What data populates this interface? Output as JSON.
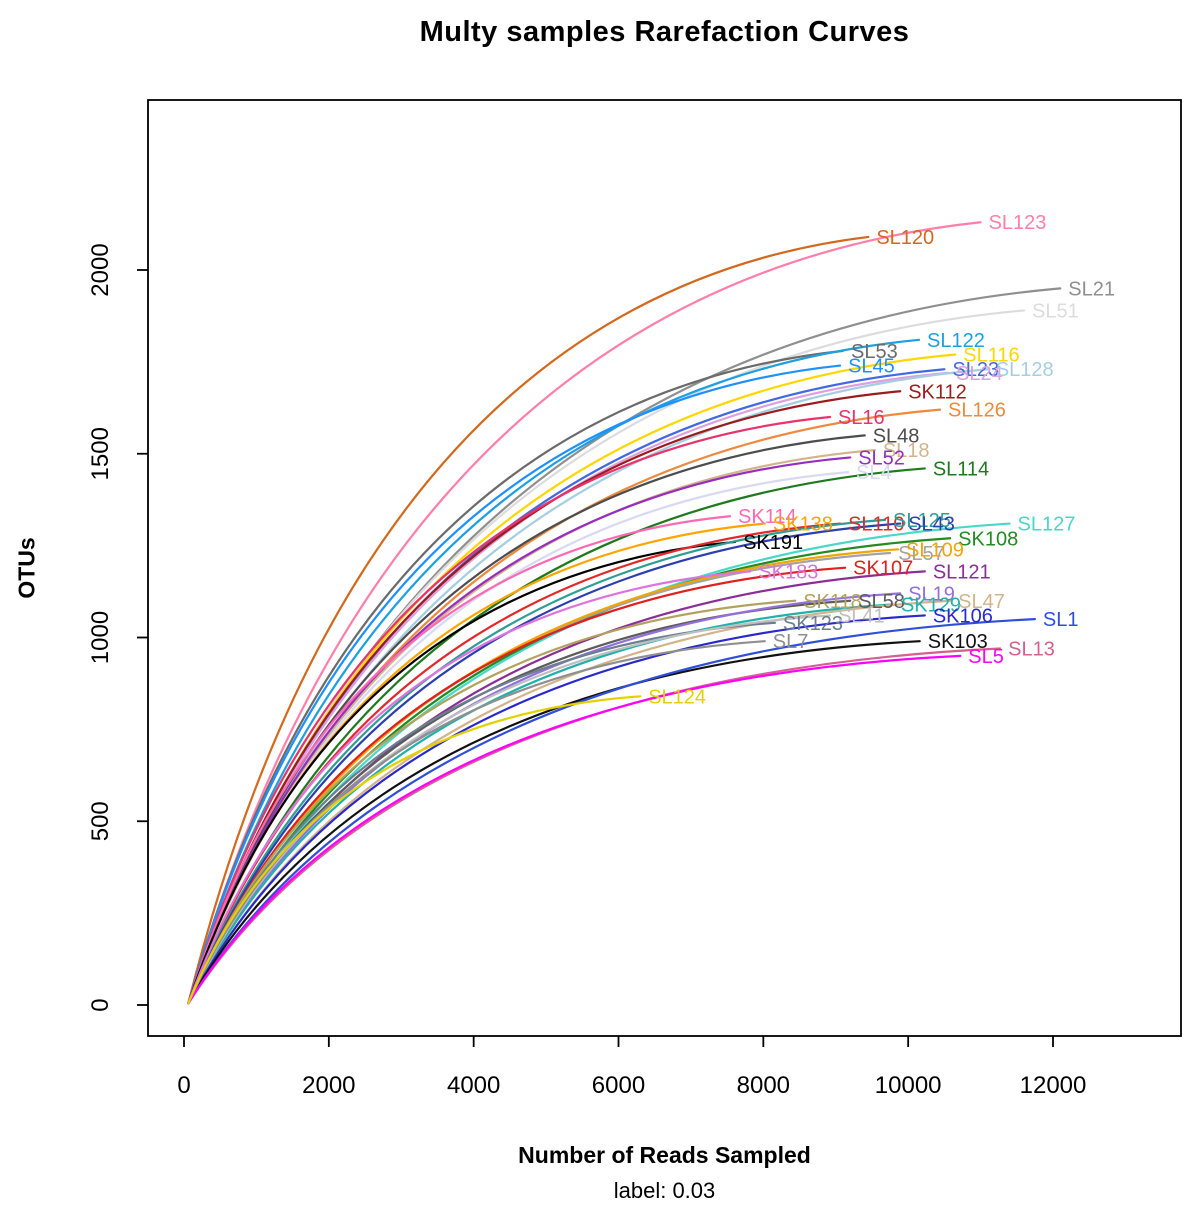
{
  "chart_data": {
    "type": "line",
    "title": "Multy samples Rarefaction Curves",
    "xlabel": "Number of Reads Sampled",
    "sublabel": "label: 0.03",
    "ylabel": "OTUs",
    "xlim": [
      0,
      13400
    ],
    "ylim": [
      0,
      2400
    ],
    "x_ticks": [
      0,
      2000,
      4000,
      6000,
      8000,
      10000,
      12000
    ],
    "y_ticks": [
      0,
      500,
      1000,
      1500,
      2000
    ],
    "grid": false,
    "legend": "labels at curve ends",
    "curve_start": {
      "reads": 60,
      "otus": 5
    },
    "series": [
      {
        "name": "SL123",
        "color": "#ff7fa8",
        "reads": 11000,
        "otus": 2130
      },
      {
        "name": "SL120",
        "color": "#d2691e",
        "reads": 9450,
        "otus": 2090
      },
      {
        "name": "SL21",
        "color": "#8f8f8f",
        "reads": 12100,
        "otus": 1950
      },
      {
        "name": "SL51",
        "color": "#dcdcdc",
        "reads": 11600,
        "otus": 1890
      },
      {
        "name": "SL53",
        "color": "#6b6b6b",
        "reads": 9100,
        "otus": 1780
      },
      {
        "name": "SL122",
        "color": "#1e9fe0",
        "reads": 10150,
        "otus": 1810
      },
      {
        "name": "SL116",
        "color": "#ffd700",
        "reads": 10650,
        "otus": 1770
      },
      {
        "name": "SL45",
        "color": "#1e90ff",
        "reads": 9060,
        "otus": 1740
      },
      {
        "name": "SL23",
        "color": "#4169e1",
        "reads": 10500,
        "otus": 1730
      },
      {
        "name": "SL24",
        "color": "#dda0dd",
        "reads": 10550,
        "otus": 1720
      },
      {
        "name": "SL128",
        "color": "#a6cee3",
        "reads": 11100,
        "otus": 1730
      },
      {
        "name": "SK112",
        "color": "#9b1c1c",
        "reads": 9890,
        "otus": 1670
      },
      {
        "name": "SL126",
        "color": "#ed8a3d",
        "reads": 10440,
        "otus": 1620
      },
      {
        "name": "SL16",
        "color": "#e8336d",
        "reads": 8920,
        "otus": 1600
      },
      {
        "name": "SL48",
        "color": "#4d4d4d",
        "reads": 9400,
        "otus": 1550
      },
      {
        "name": "SL18",
        "color": "#d2b48c",
        "reads": 9540,
        "otus": 1510
      },
      {
        "name": "SL52",
        "color": "#962fbf",
        "reads": 9200,
        "otus": 1490
      },
      {
        "name": "SL4",
        "color": "#d9d9f3",
        "reads": 9170,
        "otus": 1450
      },
      {
        "name": "SL114",
        "color": "#1f7a1f",
        "reads": 10230,
        "otus": 1460
      },
      {
        "name": "SK114",
        "color": "#ff69b4",
        "reads": 7540,
        "otus": 1330
      },
      {
        "name": "SK138",
        "color": "#ffa500",
        "reads": 8020,
        "otus": 1310
      },
      {
        "name": "SK191",
        "color": "#000000",
        "reads": 7610,
        "otus": 1260
      },
      {
        "name": "SL110",
        "color": "#e22929",
        "reads": 9060,
        "otus": 1310
      },
      {
        "name": "SL125",
        "color": "#2e9e94",
        "reads": 9680,
        "otus": 1320
      },
      {
        "name": "SL43",
        "color": "#2b3faf",
        "reads": 9890,
        "otus": 1310
      },
      {
        "name": "SL127",
        "color": "#48d8c8",
        "reads": 11400,
        "otus": 1310
      },
      {
        "name": "SK108",
        "color": "#228b22",
        "reads": 10580,
        "otus": 1270
      },
      {
        "name": "SL57",
        "color": "#a3a3a3",
        "reads": 9750,
        "otus": 1230
      },
      {
        "name": "SL109",
        "color": "#f0a500",
        "reads": 9860,
        "otus": 1240
      },
      {
        "name": "SK183",
        "color": "#dd74dd",
        "reads": 7820,
        "otus": 1180
      },
      {
        "name": "SK107",
        "color": "#e01f1f",
        "reads": 9130,
        "otus": 1190
      },
      {
        "name": "SL121",
        "color": "#8b2f97",
        "reads": 10230,
        "otus": 1180
      },
      {
        "name": "SK118",
        "color": "#b3a25f",
        "reads": 8440,
        "otus": 1100
      },
      {
        "name": "SL58",
        "color": "#5c5c5c",
        "reads": 9200,
        "otus": 1100
      },
      {
        "name": "SL19",
        "color": "#9370db",
        "reads": 9890,
        "otus": 1120
      },
      {
        "name": "SK129",
        "color": "#20b2aa",
        "reads": 9790,
        "otus": 1090
      },
      {
        "name": "SL47",
        "color": "#d2b48c",
        "reads": 10580,
        "otus": 1100
      },
      {
        "name": "SK123",
        "color": "#6a7f8f",
        "reads": 8160,
        "otus": 1040
      },
      {
        "name": "SL41",
        "color": "#bfbfbf",
        "reads": 8920,
        "otus": 1060
      },
      {
        "name": "SK106",
        "color": "#2929cc",
        "reads": 10230,
        "otus": 1060
      },
      {
        "name": "SK103",
        "color": "#111111",
        "reads": 10160,
        "otus": 990
      },
      {
        "name": "SL7",
        "color": "#8f8f8f",
        "reads": 8020,
        "otus": 990
      },
      {
        "name": "SL1",
        "color": "#2f4fd8",
        "reads": 11750,
        "otus": 1050
      },
      {
        "name": "SL13",
        "color": "#d4608f",
        "reads": 11270,
        "otus": 970
      },
      {
        "name": "SL5",
        "color": "#ff00ff",
        "reads": 10720,
        "otus": 950
      },
      {
        "name": "SL124",
        "color": "#e3d200",
        "reads": 6300,
        "otus": 840
      }
    ]
  }
}
